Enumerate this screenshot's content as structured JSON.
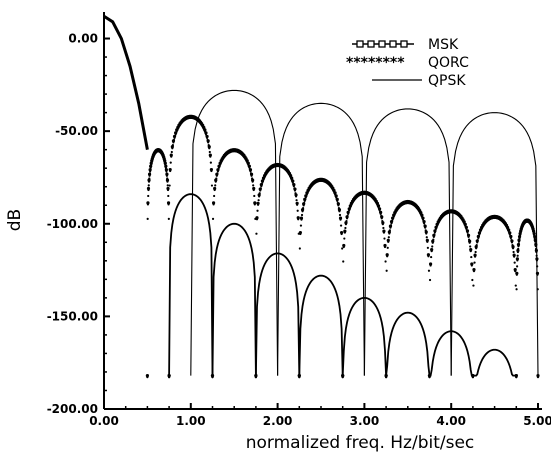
{
  "chart_data": {
    "type": "line",
    "title": "",
    "xlabel": "normalized  freq.  Hz/bit/sec",
    "ylabel": "dB",
    "xlim": [
      0,
      5
    ],
    "ylim": [
      -200,
      10
    ],
    "x_ticks": [
      0,
      1,
      2,
      3,
      4,
      5
    ],
    "x_tick_labels": [
      "0.00",
      "1.00",
      "2.00",
      "3.00",
      "4.00",
      "5.00"
    ],
    "y_ticks": [
      0,
      -50,
      -100,
      -150,
      -200
    ],
    "y_tick_labels": [
      "0.00",
      "-50.00",
      "-100.00",
      "-150.00",
      "-200.00"
    ],
    "grid": false,
    "legend_position": "top-right",
    "series": [
      {
        "name": "MSK",
        "style": "line-square-markers",
        "lobes": [
          [
            0.75,
            1.25,
            -84
          ],
          [
            1.25,
            1.75,
            -100
          ],
          [
            1.75,
            2.25,
            -116
          ],
          [
            2.25,
            2.75,
            -128
          ],
          [
            2.75,
            3.25,
            -140
          ],
          [
            3.25,
            3.75,
            -148
          ],
          [
            3.75,
            4.25,
            -158
          ],
          [
            4.25,
            4.75,
            -168
          ]
        ],
        "floor": -182
      },
      {
        "name": "QORC",
        "style": "dotted",
        "lobes": [
          [
            0.5,
            0.75,
            -60
          ],
          [
            0.75,
            1.25,
            -42
          ],
          [
            1.25,
            1.75,
            -60
          ],
          [
            1.75,
            2.25,
            -68
          ],
          [
            2.25,
            2.75,
            -76
          ],
          [
            2.75,
            3.25,
            -83
          ],
          [
            3.25,
            3.75,
            -88
          ],
          [
            3.75,
            4.25,
            -93
          ],
          [
            4.25,
            4.75,
            -96
          ],
          [
            4.75,
            5.0,
            -98
          ]
        ],
        "floor": -182
      },
      {
        "name": "QPSK",
        "style": "solid-thin",
        "lobes": [
          [
            1.0,
            2.0,
            -28
          ],
          [
            2.0,
            3.0,
            -35
          ],
          [
            3.0,
            4.0,
            -38
          ],
          [
            4.0,
            5.0,
            -40
          ]
        ],
        "floor": -182
      }
    ],
    "main_lobe": {
      "x": [
        0.0,
        0.1,
        0.2,
        0.3,
        0.4,
        0.5
      ],
      "y": [
        12,
        9,
        0,
        -15,
        -35,
        -60
      ]
    }
  }
}
